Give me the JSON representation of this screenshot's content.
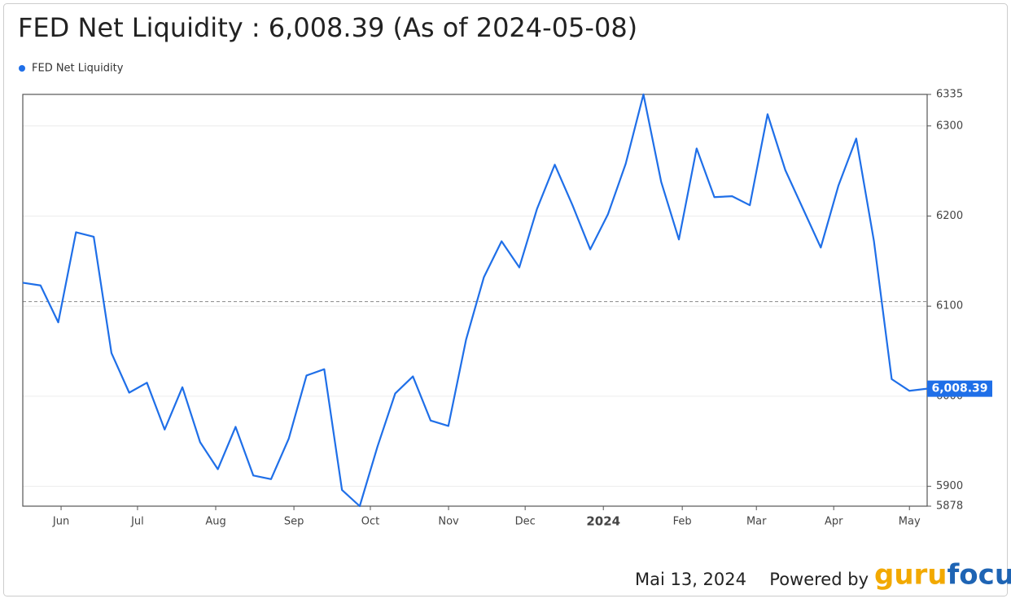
{
  "chart_data": {
    "type": "line",
    "title": "FED Net Liquidity : 6,008.39 (As of 2024-05-08)",
    "legend": "top-left",
    "categories": [
      null,
      null,
      null,
      null,
      null,
      null,
      null,
      null,
      null,
      null,
      null,
      null,
      null,
      null,
      null,
      null,
      null,
      null,
      null,
      null,
      null,
      null,
      null,
      null,
      null,
      null,
      null,
      null,
      null,
      null,
      null,
      null,
      null,
      null,
      null,
      null,
      null,
      null,
      null,
      null,
      null,
      null,
      null,
      null,
      null,
      null,
      null,
      null,
      null,
      null,
      null,
      null
    ],
    "series": [
      {
        "name": "FED Net Liquidity",
        "color": "#1f6fe8",
        "values": [
          6126,
          6123,
          6082,
          6182,
          6177,
          6048,
          6004,
          6015,
          5963,
          6010,
          5949,
          5919,
          5966,
          5912,
          5908,
          5953,
          6023,
          6030,
          5896,
          5878,
          5944,
          6003,
          6022,
          5973,
          5967,
          6063,
          6132,
          6172,
          6143,
          6208,
          6257,
          6212,
          6163,
          6202,
          6258,
          6335,
          6238,
          6174,
          6275,
          6221,
          6222,
          6212,
          6313,
          6251,
          6208,
          6165,
          6234,
          6286,
          6172,
          6019,
          6006,
          6008.39
        ]
      }
    ],
    "end_label": {
      "value": 6008.39,
      "label": "6,008.39"
    },
    "reference_line": 6105,
    "xlim": [
      0,
      51
    ],
    "xticks": [
      {
        "value": 2.16,
        "label": "Jun"
      },
      {
        "value": 6.47,
        "label": "Jul"
      },
      {
        "value": 10.88,
        "label": "Aug"
      },
      {
        "value": 15.29,
        "label": "Sep"
      },
      {
        "value": 19.6,
        "label": "Oct"
      },
      {
        "value": 24.01,
        "label": "Nov"
      },
      {
        "value": 28.33,
        "label": "Dec"
      },
      {
        "value": 32.74,
        "label": "2024"
      },
      {
        "value": 37.19,
        "label": "Feb"
      },
      {
        "value": 41.37,
        "label": "Mar"
      },
      {
        "value": 45.73,
        "label": "Apr"
      },
      {
        "value": 50.0,
        "label": "May"
      }
    ],
    "ylim": [
      5878,
      6335
    ],
    "yticks": [
      5878,
      5900,
      6000,
      6100,
      6200,
      6300,
      6335
    ],
    "grid": true,
    "footer_date": "Mai 13, 2024",
    "credit": "Powered by",
    "logo_parts": [
      "guru",
      "focus"
    ]
  }
}
